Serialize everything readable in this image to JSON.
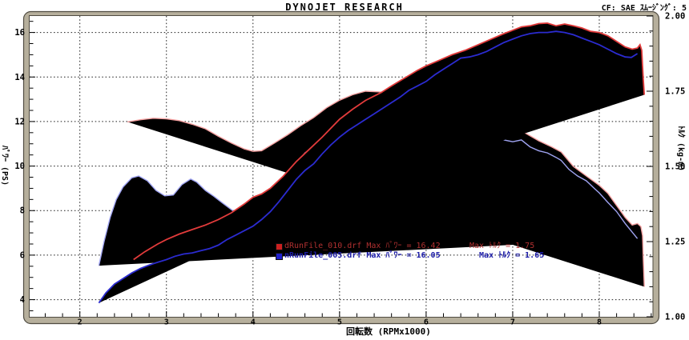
{
  "header": {
    "title": "DYNOJET  RESEARCH",
    "correction": "CF: SAE  ｽﾑｰｼﾞﾝｸﾞ: 5"
  },
  "chart_data": {
    "type": "line",
    "title": "DYNOJET RESEARCH",
    "grid": "dotted",
    "x_axis": {
      "label": "回転数 (RPMx1000)",
      "min": 1.42,
      "max": 8.62,
      "major_ticks": [
        2,
        3,
        4,
        5,
        6,
        7,
        8
      ],
      "minor_step": 0.2
    },
    "y_left": {
      "label": "ﾊﾟﾜｰ (PS)",
      "min": 3.23,
      "max": 16.74,
      "major_ticks": [
        4,
        6,
        8,
        10,
        12,
        14,
        16
      ],
      "minor_step": 0.5
    },
    "y_right": {
      "label": "ﾄﾙｸ (kg-m)",
      "min": 1.0,
      "max": 2.0,
      "major_ticks": [
        2.0,
        1.75,
        1.5,
        1.25,
        1.0
      ],
      "major_tick_labels": [
        "2.00",
        "1.75",
        "1.50",
        "1.25",
        "1.00"
      ],
      "minor_step": 0.05
    },
    "series": [
      {
        "name": "dRunFile_010.drf torque",
        "axis": "right",
        "color": "#f4a0a0",
        "width": 1.4,
        "points": [
          [
            2.55,
            1.648
          ],
          [
            2.7,
            1.655
          ],
          [
            2.85,
            1.66
          ],
          [
            3.0,
            1.658
          ],
          [
            3.15,
            1.652
          ],
          [
            3.3,
            1.64
          ],
          [
            3.45,
            1.625
          ],
          [
            3.6,
            1.6
          ],
          [
            3.75,
            1.578
          ],
          [
            3.9,
            1.558
          ],
          [
            4.0,
            1.55
          ],
          [
            4.1,
            1.552
          ],
          [
            4.25,
            1.578
          ],
          [
            4.4,
            1.605
          ],
          [
            4.55,
            1.635
          ],
          [
            4.7,
            1.662
          ],
          [
            4.85,
            1.695
          ],
          [
            5.0,
            1.72
          ],
          [
            5.15,
            1.738
          ],
          [
            5.3,
            1.75
          ],
          [
            5.45,
            1.748
          ],
          [
            5.6,
            1.742
          ],
          [
            5.75,
            1.735
          ],
          [
            5.9,
            1.72
          ],
          [
            6.0,
            1.716
          ],
          [
            6.1,
            1.722
          ],
          [
            6.2,
            1.728
          ],
          [
            6.35,
            1.71
          ],
          [
            6.5,
            1.69
          ],
          [
            6.65,
            1.675
          ],
          [
            6.8,
            1.655
          ],
          [
            7.0,
            1.635
          ],
          [
            7.15,
            1.61
          ],
          [
            7.3,
            1.585
          ],
          [
            7.45,
            1.565
          ],
          [
            7.56,
            1.548
          ],
          [
            7.7,
            1.5
          ],
          [
            7.85,
            1.468
          ],
          [
            8.0,
            1.437
          ],
          [
            8.1,
            1.41
          ],
          [
            8.2,
            1.37
          ],
          [
            8.3,
            1.33
          ],
          [
            8.38,
            1.305
          ],
          [
            8.44,
            1.31
          ],
          [
            8.48,
            1.3
          ],
          [
            8.5,
            1.27
          ],
          [
            8.51,
            1.18
          ],
          [
            8.52,
            1.1
          ]
        ]
      },
      {
        "name": "nRunFile_005.drf torque",
        "axis": "right",
        "color": "#a0a4f2",
        "width": 1.4,
        "points": [
          [
            2.22,
            1.17
          ],
          [
            2.28,
            1.25
          ],
          [
            2.35,
            1.33
          ],
          [
            2.42,
            1.39
          ],
          [
            2.5,
            1.432
          ],
          [
            2.6,
            1.462
          ],
          [
            2.68,
            1.468
          ],
          [
            2.78,
            1.452
          ],
          [
            2.88,
            1.42
          ],
          [
            2.98,
            1.402
          ],
          [
            3.08,
            1.405
          ],
          [
            3.18,
            1.44
          ],
          [
            3.28,
            1.458
          ],
          [
            3.35,
            1.448
          ],
          [
            3.45,
            1.42
          ],
          [
            3.55,
            1.4
          ],
          [
            3.65,
            1.378
          ],
          [
            3.78,
            1.35
          ],
          [
            3.9,
            1.337
          ],
          [
            4.0,
            1.334
          ],
          [
            4.1,
            1.34
          ],
          [
            4.2,
            1.375
          ],
          [
            4.3,
            1.42
          ],
          [
            4.4,
            1.468
          ],
          [
            4.5,
            1.51
          ],
          [
            4.6,
            1.545
          ],
          [
            4.7,
            1.565
          ],
          [
            4.8,
            1.582
          ],
          [
            4.9,
            1.598
          ],
          [
            5.0,
            1.608
          ],
          [
            5.1,
            1.618
          ],
          [
            5.2,
            1.625
          ],
          [
            5.3,
            1.63
          ],
          [
            5.4,
            1.638
          ],
          [
            5.5,
            1.628
          ],
          [
            5.6,
            1.638
          ],
          [
            5.7,
            1.645
          ],
          [
            5.8,
            1.638
          ],
          [
            5.9,
            1.645
          ],
          [
            6.0,
            1.648
          ],
          [
            6.1,
            1.652
          ],
          [
            6.2,
            1.655
          ],
          [
            6.3,
            1.648
          ],
          [
            6.4,
            1.638
          ],
          [
            6.5,
            1.628
          ],
          [
            6.6,
            1.615
          ],
          [
            6.7,
            1.605
          ],
          [
            6.8,
            1.592
          ],
          [
            6.9,
            1.588
          ],
          [
            7.0,
            1.582
          ],
          [
            7.1,
            1.588
          ],
          [
            7.2,
            1.565
          ],
          [
            7.3,
            1.552
          ],
          [
            7.4,
            1.545
          ],
          [
            7.5,
            1.53
          ],
          [
            7.56,
            1.52
          ],
          [
            7.65,
            1.49
          ],
          [
            7.75,
            1.468
          ],
          [
            7.85,
            1.452
          ],
          [
            7.95,
            1.425
          ],
          [
            8.0,
            1.412
          ],
          [
            8.1,
            1.38
          ],
          [
            8.2,
            1.35
          ],
          [
            8.3,
            1.31
          ],
          [
            8.37,
            1.285
          ],
          [
            8.44,
            1.26
          ]
        ]
      },
      {
        "name": "dRunFile_010.drf power",
        "axis": "left",
        "color": "#e23b3b",
        "width": 1.8,
        "points": [
          [
            2.62,
            5.8
          ],
          [
            2.75,
            6.15
          ],
          [
            2.9,
            6.5
          ],
          [
            3.0,
            6.7
          ],
          [
            3.15,
            6.95
          ],
          [
            3.3,
            7.15
          ],
          [
            3.45,
            7.35
          ],
          [
            3.6,
            7.6
          ],
          [
            3.75,
            7.9
          ],
          [
            3.9,
            8.3
          ],
          [
            4.0,
            8.6
          ],
          [
            4.1,
            8.75
          ],
          [
            4.2,
            9.0
          ],
          [
            4.35,
            9.55
          ],
          [
            4.5,
            10.2
          ],
          [
            4.65,
            10.75
          ],
          [
            4.8,
            11.3
          ],
          [
            5.0,
            12.1
          ],
          [
            5.15,
            12.55
          ],
          [
            5.3,
            12.95
          ],
          [
            5.48,
            13.3
          ],
          [
            5.6,
            13.6
          ],
          [
            5.75,
            13.95
          ],
          [
            5.9,
            14.3
          ],
          [
            6.0,
            14.5
          ],
          [
            6.15,
            14.75
          ],
          [
            6.3,
            15.0
          ],
          [
            6.45,
            15.2
          ],
          [
            6.6,
            15.45
          ],
          [
            6.75,
            15.7
          ],
          [
            6.9,
            15.95
          ],
          [
            7.0,
            16.1
          ],
          [
            7.1,
            16.25
          ],
          [
            7.2,
            16.3
          ],
          [
            7.3,
            16.4
          ],
          [
            7.4,
            16.42
          ],
          [
            7.5,
            16.3
          ],
          [
            7.6,
            16.38
          ],
          [
            7.7,
            16.3
          ],
          [
            7.8,
            16.2
          ],
          [
            7.9,
            16.05
          ],
          [
            8.0,
            16.0
          ],
          [
            8.1,
            15.85
          ],
          [
            8.2,
            15.6
          ],
          [
            8.3,
            15.35
          ],
          [
            8.38,
            15.25
          ],
          [
            8.44,
            15.3
          ],
          [
            8.47,
            15.45
          ],
          [
            8.49,
            15.2
          ],
          [
            8.5,
            14.5
          ],
          [
            8.51,
            13.8
          ],
          [
            8.52,
            13.2
          ]
        ]
      },
      {
        "name": "nRunFile_005.drf power",
        "axis": "left",
        "color": "#2b2bd0",
        "width": 1.8,
        "points": [
          [
            2.22,
            3.85
          ],
          [
            2.3,
            4.3
          ],
          [
            2.4,
            4.7
          ],
          [
            2.5,
            4.95
          ],
          [
            2.6,
            5.2
          ],
          [
            2.7,
            5.4
          ],
          [
            2.8,
            5.55
          ],
          [
            2.9,
            5.68
          ],
          [
            3.0,
            5.8
          ],
          [
            3.1,
            5.95
          ],
          [
            3.2,
            6.05
          ],
          [
            3.3,
            6.1
          ],
          [
            3.4,
            6.2
          ],
          [
            3.5,
            6.3
          ],
          [
            3.6,
            6.45
          ],
          [
            3.7,
            6.7
          ],
          [
            3.8,
            6.9
          ],
          [
            3.9,
            7.1
          ],
          [
            4.0,
            7.3
          ],
          [
            4.1,
            7.6
          ],
          [
            4.2,
            7.95
          ],
          [
            4.3,
            8.4
          ],
          [
            4.4,
            8.9
          ],
          [
            4.5,
            9.4
          ],
          [
            4.6,
            9.8
          ],
          [
            4.7,
            10.1
          ],
          [
            4.8,
            10.55
          ],
          [
            4.9,
            10.95
          ],
          [
            5.0,
            11.3
          ],
          [
            5.1,
            11.6
          ],
          [
            5.2,
            11.85
          ],
          [
            5.3,
            12.1
          ],
          [
            5.4,
            12.35
          ],
          [
            5.5,
            12.6
          ],
          [
            5.6,
            12.85
          ],
          [
            5.7,
            13.1
          ],
          [
            5.8,
            13.4
          ],
          [
            5.9,
            13.6
          ],
          [
            6.0,
            13.8
          ],
          [
            6.1,
            14.1
          ],
          [
            6.2,
            14.35
          ],
          [
            6.3,
            14.6
          ],
          [
            6.4,
            14.85
          ],
          [
            6.5,
            14.9
          ],
          [
            6.6,
            15.0
          ],
          [
            6.7,
            15.15
          ],
          [
            6.8,
            15.35
          ],
          [
            6.9,
            15.55
          ],
          [
            7.0,
            15.7
          ],
          [
            7.1,
            15.85
          ],
          [
            7.2,
            15.95
          ],
          [
            7.3,
            16.0
          ],
          [
            7.4,
            16.0
          ],
          [
            7.5,
            16.05
          ],
          [
            7.6,
            16.0
          ],
          [
            7.7,
            15.9
          ],
          [
            7.8,
            15.75
          ],
          [
            7.9,
            15.6
          ],
          [
            8.0,
            15.45
          ],
          [
            8.1,
            15.25
          ],
          [
            8.2,
            15.05
          ],
          [
            8.3,
            14.9
          ],
          [
            8.37,
            14.88
          ],
          [
            8.44,
            15.05
          ]
        ]
      }
    ],
    "legend": [
      {
        "marker_color": "#cc2020",
        "text_color": "#b03030",
        "bold": false,
        "power_text": "dRunFile_010.drf Max ﾊﾟﾜｰ = 16.42",
        "torque_text": "Max ﾄﾙｸ = 1.75",
        "max_power_ps": 16.42,
        "max_torque_kgm": 1.75
      },
      {
        "marker_color": "#2020cc",
        "text_color": "#1c1ca8",
        "bold": true,
        "power_text": "nRunFile_005.drf Max ﾊﾟﾜｰ = 16.05",
        "torque_text": "Max ﾄﾙｸ = 1.65",
        "max_power_ps": 16.05,
        "max_torque_kgm": 1.65
      }
    ],
    "frame_color": "#b6af9c",
    "frame_edge_color": "#504c42"
  }
}
